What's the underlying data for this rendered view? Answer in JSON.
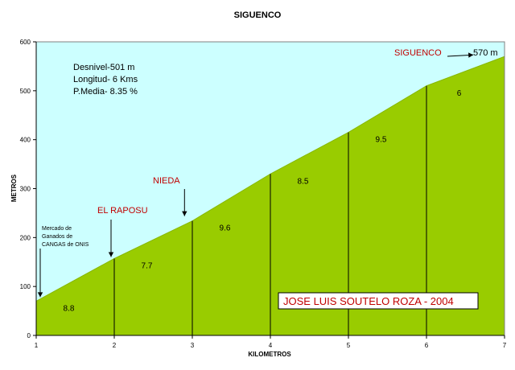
{
  "chart_data": {
    "type": "area",
    "title": "SIGUENCO",
    "xlabel": "KILOMETROS",
    "ylabel": "METROS",
    "xlim": [
      1,
      7
    ],
    "ylim": [
      0,
      600
    ],
    "x_ticks": [
      "1",
      "2",
      "3",
      "4",
      "5",
      "6",
      "7"
    ],
    "y_ticks": [
      "0",
      "100",
      "200",
      "300",
      "400",
      "500",
      "600"
    ],
    "x": [
      1,
      2,
      3,
      4,
      5,
      6,
      7
    ],
    "y": [
      70,
      157,
      234,
      330,
      415,
      510,
      570
    ],
    "segment_labels": [
      "8.8",
      "7.7",
      "9.6",
      "8.5",
      "9.5",
      "6"
    ],
    "stats": [
      "Desnivel-501 m",
      "Longitud- 6 Kms",
      "P.Media- 8.35 %"
    ],
    "annotations": [
      {
        "text": "Mercado de Ganados de CANGAS de ONIS",
        "x": 1,
        "y": 70
      },
      {
        "text": "EL RAPOSU",
        "x": 2,
        "y": 157
      },
      {
        "text": "NIEDA",
        "x": 2.9,
        "y": 234
      },
      {
        "text": "SIGUENCO",
        "x": 6.6,
        "y": 570
      }
    ],
    "end_value_label": "570 m",
    "credit": "JOSE LUIS SOUTELO ROZA - 2004",
    "colors": {
      "sky": "#CCFFFF",
      "terrain": "#99CC00",
      "place_label": "#C00000",
      "divider": "#000000"
    },
    "grid": false
  }
}
